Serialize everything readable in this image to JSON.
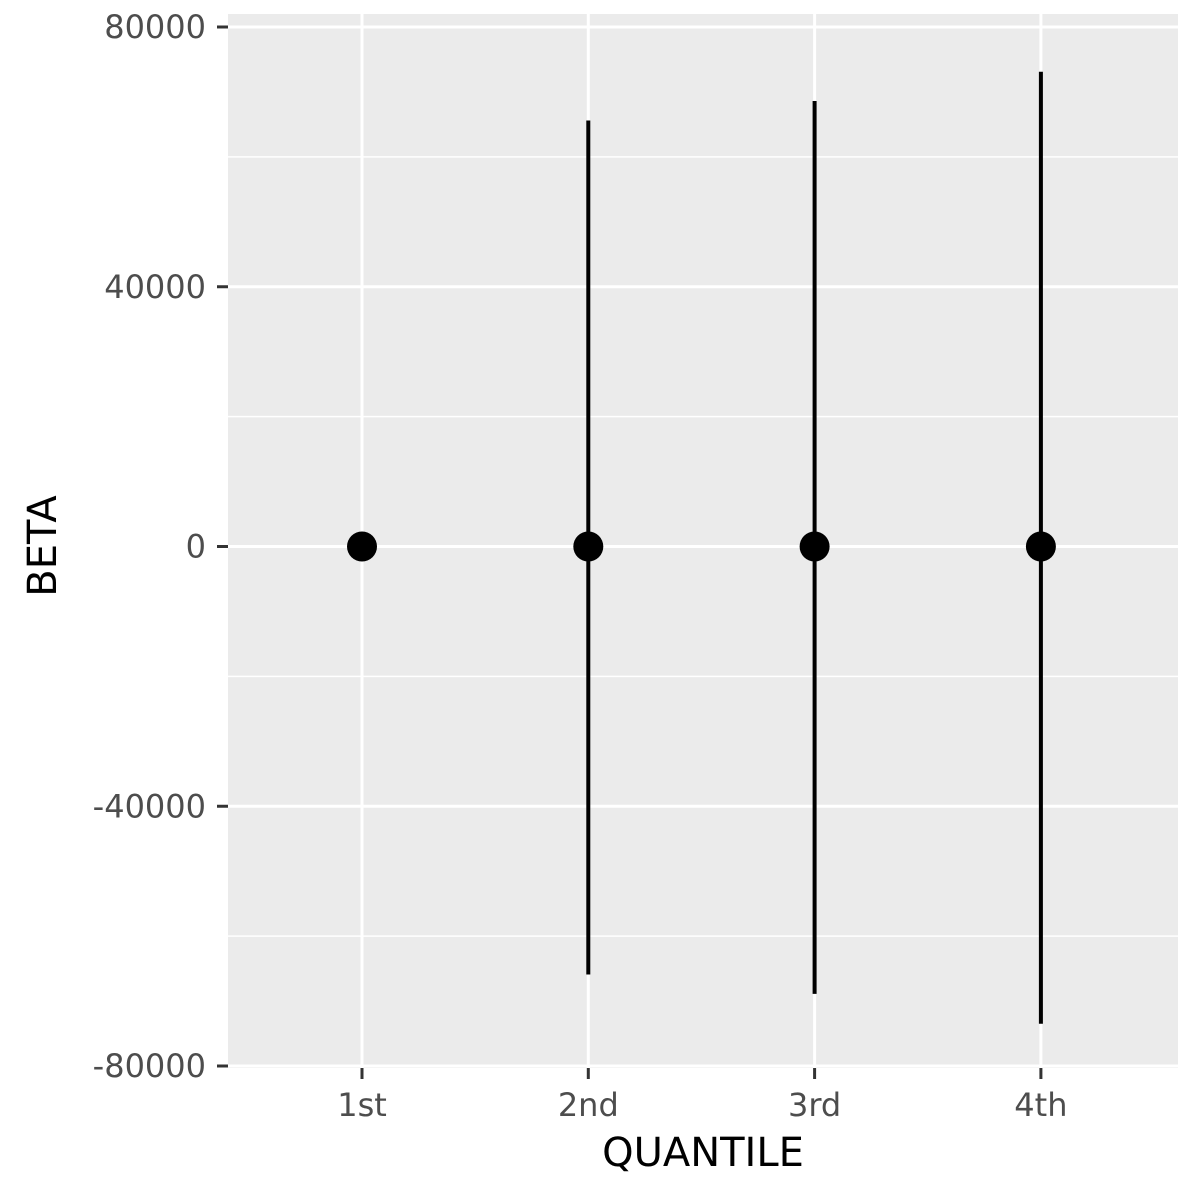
{
  "chart_data": {
    "type": "scatter",
    "xlabel": "QUANTILE",
    "ylabel": "BETA",
    "categories": [
      "1st",
      "2nd",
      "3rd",
      "4th"
    ],
    "ylim": [
      -81000,
      80000
    ],
    "yticks": [
      80000,
      40000,
      0,
      -40000,
      -80000
    ],
    "ytick_labels": [
      "80000",
      "40000",
      "0",
      "-40000",
      "-80000"
    ],
    "grid": true,
    "legend": "none",
    "series": [
      {
        "points": [
          {
            "x": "1st",
            "y": 0,
            "ymin": 0,
            "ymax": 0
          },
          {
            "x": "2nd",
            "y": 0,
            "ymin": -65900,
            "ymax": 65600
          },
          {
            "x": "3rd",
            "y": 0,
            "ymin": -68900,
            "ymax": 68600
          },
          {
            "x": "4th",
            "y": 0,
            "ymin": -73500,
            "ymax": 73100
          }
        ]
      }
    ]
  },
  "colors": {
    "panel": "#ebebeb",
    "grid": "#ffffff",
    "mark": "#000000",
    "tick_text": "#4d4d4d",
    "tick_line": "#333333"
  }
}
